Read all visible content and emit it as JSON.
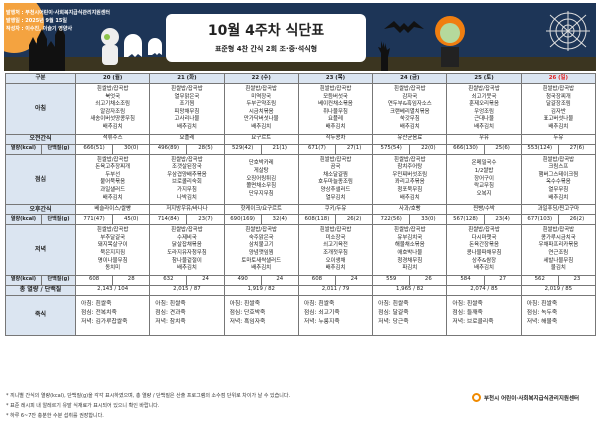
{
  "header": {
    "publisher": "발행처 : 부천시어린이·사회복지급식관리지원센터",
    "date": "발행일 : 2025년 9월 15일",
    "author": "작성자 : 이수진, 이슬기 영양사",
    "title": "10월 4주차 식단표",
    "subtitle": "표준형 4찬 간식 2회 조·중·석식형"
  },
  "colors": {
    "banner": "#1d3557",
    "label_bg": "#dbe5f1",
    "sunday": "#e02020",
    "logo": "#f08a00"
  },
  "table": {
    "corner": "구분",
    "labels": {
      "breakfast": "아침",
      "am_snack": "오전간식",
      "kcal": "열량(kcal)",
      "protein": "단백질(g)",
      "lunch": "점심",
      "pm_snack": "오후간식",
      "dinner": "저녁",
      "total": "총 열량 / 단백질",
      "porridge": "죽식"
    },
    "days": [
      {
        "day": "20 (월)",
        "breakfast": [
          "흰쌀밥/잡곡밥",
          "북엇국",
          "쇠고기채소조림",
          "알감자조림",
          "새송이버섯땅콩무침",
          "배추김치"
        ],
        "am_snack": "석류주스",
        "kcal1": "666(51)",
        "prot1": "30(0)",
        "lunch": [
          "흰쌀밥/잡곡밥",
          "돈육고추장찌개",
          "두부선",
          "불어묵볶음",
          "과일샐러드",
          "배추김치"
        ],
        "pm_snack": "베슬라이스/쌀빵",
        "kcal2": "771(47)",
        "prot2": "45(0)",
        "dinner": [
          "흰쌀밥/잡곡밥",
          "부추달걀국",
          "돼지목살구이",
          "묵은지지짐",
          "명이나물무침",
          "동치미"
        ],
        "kcal3": "608",
        "prot3": "28",
        "total": "2,143 / 104",
        "porridge": [
          "아침: 흰쌀죽",
          "점심: 전복치죽",
          "저녁: 김가루찹쌀죽"
        ]
      },
      {
        "day": "21 (화)",
        "breakfast": [
          "흰쌀밥/잡곡밥",
          "열무맑은국",
          "조기찜",
          "피망채무침",
          "고사리나물",
          "배추김치"
        ],
        "am_snack": "요플레",
        "kcal1": "496(89)",
        "prot1": "28(5)",
        "lunch": [
          "흰쌀밥/잡곡밥",
          "조갯살된장국",
          "우삼겹양배추볶음",
          "브로콜리숙회",
          "가지무침",
          "나박김치"
        ],
        "pm_snack": "저지방우유/바나나",
        "kcal2": "714(84)",
        "prot2": "23(7)",
        "dinner": [
          "흰쌀밥/잡곡밥",
          "수제비국",
          "닭살잡채볶음",
          "도라지유자청무침",
          "참나물겉절이",
          "배추김치"
        ],
        "kcal3": "632",
        "prot3": "24",
        "total": "2,015 / 87",
        "porridge": [
          "아침: 흰쌀죽",
          "점심: 견과죽",
          "저녁: 참치죽"
        ]
      },
      {
        "day": "22 (수)",
        "breakfast": [
          "흰쌀밥/잡곡밥",
          "미역장국",
          "두부곤약조림",
          "시금치볶음",
          "만가닥버섯나물",
          "배추김치"
        ],
        "am_snack": "요구르트",
        "kcal1": "529(42)",
        "prot1": "21(1)",
        "lunch": [
          "단호박카레",
          "게살탕",
          "오징어링튀김",
          "쫄면채소무침",
          "단무지무침"
        ],
        "pm_snack": "핫케이크/요구르트",
        "kcal2": "690(169)",
        "prot2": "32(4)",
        "dinner": [
          "흰쌀밥/잡곡밥",
          "숙주맑은국",
          "삼치불고기",
          "양념깻잎찜",
          "토마토새싹샐러드",
          "배추김치"
        ],
        "kcal3": "490",
        "prot3": "24",
        "total": "1,919 / 82",
        "porridge": [
          "아침: 흰쌀죽",
          "점심: 단호박죽",
          "저녁: 흑임자죽"
        ]
      },
      {
        "day": "23 (목)",
        "breakfast": [
          "흰쌀밥/잡곡밥",
          "모듬버섯국",
          "베이컨채소볶음",
          "취나물무침",
          "요플레",
          "배추김치"
        ],
        "am_snack": "작두콩차",
        "kcal1": "671(7)",
        "prot1": "27(1)",
        "lunch": [
          "흰쌀밥/잡곡밥",
          "곰국",
          "채소달걀찜",
          "호두마늘종조림",
          "양상추샐러드",
          "열무김치"
        ],
        "pm_snack": "쿠키/두유",
        "kcal2": "608(118)",
        "prot2": "26(2)",
        "dinner": [
          "흰쌀밥/잡곡밥",
          "미소장국",
          "쇠고기육전",
          "조개젓무침",
          "오이생채",
          "배추김치"
        ],
        "kcal3": "608",
        "prot3": "24",
        "total": "2,011 / 79",
        "porridge": [
          "아침: 흰쌀죽",
          "점심: 쇠고기죽",
          "저녁: 누룽지죽"
        ]
      },
      {
        "day": "24 (금)",
        "breakfast": [
          "흰쌀밥/잡곡밥",
          "감자국",
          "연두부&흑임자소스",
          "크랜베리멸치볶음",
          "쑥갓무침",
          "배추김치"
        ],
        "am_snack": "유산균음료",
        "kcal1": "575(54)",
        "prot1": "22(0)",
        "lunch": [
          "흰쌀밥/잡곡밥",
          "참치주어탕",
          "우민찌버섯조림",
          "꽈리고추볶음",
          "청포묵무침",
          "배추김치"
        ],
        "pm_snack": "사과/호빵",
        "kcal2": "722(56)",
        "prot2": "33(0)",
        "dinner": [
          "흰쌀밥/잡곡밥",
          "유부김치국",
          "해물채소볶음",
          "애호박나물",
          "청경채무침",
          "파김치"
        ],
        "kcal3": "559",
        "prot3": "26",
        "total": "1,965 / 82",
        "porridge": [
          "아침: 흰쌀죽",
          "점심: 달걀죽",
          "저녁: 당근죽"
        ]
      },
      {
        "day": "25 (토)",
        "breakfast": [
          "흰쌀밥/잡곡밥",
          "쇠고기뭇국",
          "훈제오리볶음",
          "우엉조림",
          "근대나물",
          "배추김치"
        ],
        "am_snack": "우유",
        "kcal1": "666(130)",
        "prot1": "25(6)",
        "lunch": [
          "온메밀국수",
          "1/2쌀밥",
          "장어구이",
          "락교무침",
          "오복지"
        ],
        "pm_snack": "찐빵/수박",
        "kcal2": "567(128)",
        "prot2": "23(4)",
        "dinner": [
          "흰쌀밥/잡곡밥",
          "다시마챗국",
          "돈육간장볶음",
          "콩나물파채무침",
          "상추&쌈장",
          "배추김치"
        ],
        "kcal3": "584",
        "prot3": "27",
        "total": "2,074 / 85",
        "porridge": [
          "아침: 흰쌀죽",
          "점심: 들깨죽",
          "저녁: 브로콜리죽"
        ]
      },
      {
        "day": "26 (일)",
        "breakfast": [
          "흰쌀밥/잡곡밥",
          "청국장찌개",
          "달걀장조림",
          "김자반",
          "표고버섯나물",
          "배추김치"
        ],
        "am_snack": "두유",
        "kcal1": "553(124)",
        "prot1": "27(6)",
        "lunch": [
          "흰쌀밥/잡곡밥",
          "크림스프",
          "햄버그스테이크찜",
          "옥수수볶음",
          "열무무침",
          "배추김치"
        ],
        "pm_snack": "과일푸딩/찐고구마",
        "kcal2": "677(103)",
        "prot2": "26(2)",
        "dinner": [
          "흰쌀밥/잡곡밥",
          "콩가루시금치국",
          "우채파프리카볶음",
          "연근조림",
          "세발나물무침",
          "물김치"
        ],
        "kcal3": "562",
        "prot3": "23",
        "total": "2,019 / 85",
        "porridge": [
          "아침: 흰쌀죽",
          "점심: 녹두죽",
          "저녁: 해물죽"
        ]
      }
    ]
  },
  "notes": [
    "* 끼니별 간식의 열량(kcal), 단백질(g)을 각각 표시하였으며, 총 열량 / 단백질은 산출 프로그램의 소수점 단위로 차이가 날 수 있습니다.",
    "* 표준 레시피 내 알레르기 유발 식재료가 표시되어 있으니 확인 바랍니다.",
    "* 하루 6~7잔 충분한 수분 섭취를 권장합니다."
  ],
  "logo": "부천시 어린이·사회복지급식관리지원센터"
}
